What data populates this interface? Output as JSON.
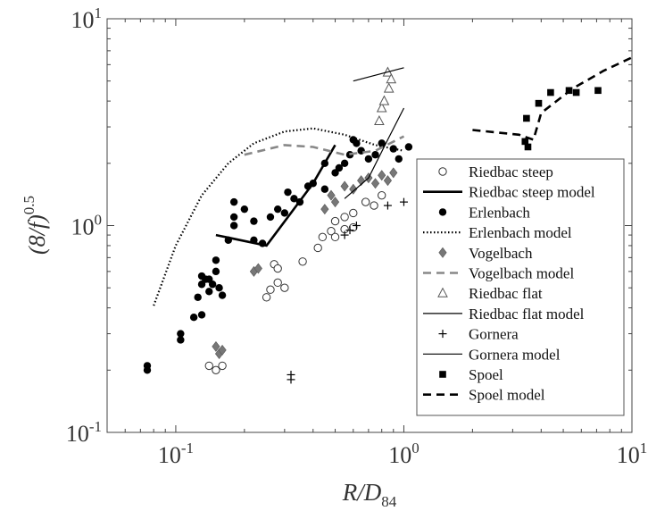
{
  "chart_data": {
    "type": "scatter",
    "title": "",
    "xlabel": "R/D84",
    "ylabel": "(8/f)^0.5",
    "xscale": "log",
    "yscale": "log",
    "xlim": [
      0.05,
      10
    ],
    "ylim": [
      0.1,
      10
    ],
    "x_ticks": [
      {
        "value": 0.1,
        "base": "10",
        "exp": "-1"
      },
      {
        "value": 1,
        "base": "10",
        "exp": "0"
      },
      {
        "value": 10,
        "base": "10",
        "exp": "1"
      }
    ],
    "y_ticks": [
      {
        "value": 0.1,
        "base": "10",
        "exp": "-1"
      },
      {
        "value": 1,
        "base": "10",
        "exp": "0"
      },
      {
        "value": 10,
        "base": "10",
        "exp": "1"
      }
    ],
    "legend_position": "right",
    "series": [
      {
        "name": "Riedbac steep",
        "kind": "points",
        "marker": "circle-open",
        "color": "#333333",
        "points": [
          [
            0.14,
            0.21
          ],
          [
            0.15,
            0.2
          ],
          [
            0.16,
            0.21
          ],
          [
            0.25,
            0.45
          ],
          [
            0.26,
            0.49
          ],
          [
            0.28,
            0.53
          ],
          [
            0.27,
            0.65
          ],
          [
            0.28,
            0.62
          ],
          [
            0.3,
            0.5
          ],
          [
            0.36,
            0.67
          ],
          [
            0.42,
            0.78
          ],
          [
            0.44,
            0.88
          ],
          [
            0.48,
            0.94
          ],
          [
            0.5,
            0.88
          ],
          [
            0.55,
            0.96
          ],
          [
            0.6,
            0.98
          ],
          [
            0.5,
            1.05
          ],
          [
            0.55,
            1.1
          ],
          [
            0.6,
            1.15
          ],
          [
            0.68,
            1.3
          ],
          [
            0.74,
            1.25
          ],
          [
            0.8,
            1.4
          ]
        ]
      },
      {
        "name": "Riedbac steep model",
        "kind": "line",
        "style": "thick",
        "color": "#000000",
        "points": [
          [
            0.15,
            0.9
          ],
          [
            0.25,
            0.8
          ],
          [
            0.32,
            1.15
          ],
          [
            0.4,
            1.6
          ],
          [
            0.5,
            2.45
          ]
        ]
      },
      {
        "name": "Erlenbach",
        "kind": "points",
        "marker": "circle-filled",
        "color": "#000000",
        "points": [
          [
            0.075,
            0.2
          ],
          [
            0.075,
            0.21
          ],
          [
            0.105,
            0.28
          ],
          [
            0.105,
            0.3
          ],
          [
            0.12,
            0.36
          ],
          [
            0.13,
            0.37
          ],
          [
            0.125,
            0.45
          ],
          [
            0.13,
            0.52
          ],
          [
            0.135,
            0.55
          ],
          [
            0.14,
            0.48
          ],
          [
            0.14,
            0.55
          ],
          [
            0.15,
            0.6
          ],
          [
            0.15,
            0.68
          ],
          [
            0.155,
            0.5
          ],
          [
            0.16,
            0.46
          ],
          [
            0.13,
            0.57
          ],
          [
            0.145,
            0.52
          ],
          [
            0.17,
            0.85
          ],
          [
            0.18,
            1.0
          ],
          [
            0.18,
            1.1
          ],
          [
            0.18,
            1.3
          ],
          [
            0.2,
            1.2
          ],
          [
            0.22,
            1.05
          ],
          [
            0.22,
            0.85
          ],
          [
            0.24,
            0.82
          ],
          [
            0.26,
            1.1
          ],
          [
            0.28,
            1.2
          ],
          [
            0.3,
            1.15
          ],
          [
            0.31,
            1.45
          ],
          [
            0.33,
            1.35
          ],
          [
            0.35,
            1.3
          ],
          [
            0.4,
            1.6
          ],
          [
            0.45,
            1.5
          ],
          [
            0.5,
            1.8
          ],
          [
            0.55,
            2.0
          ],
          [
            0.58,
            2.2
          ],
          [
            0.62,
            2.5
          ],
          [
            0.65,
            2.3
          ],
          [
            0.7,
            2.1
          ],
          [
            0.75,
            2.2
          ],
          [
            0.8,
            2.5
          ],
          [
            0.9,
            2.35
          ],
          [
            0.95,
            2.1
          ],
          [
            1.05,
            2.4
          ],
          [
            0.45,
            2.0
          ],
          [
            0.52,
            1.9
          ],
          [
            0.38,
            1.55
          ],
          [
            0.6,
            2.6
          ]
        ]
      },
      {
        "name": "Erlenbach model",
        "kind": "line",
        "style": "dotted",
        "color": "#000000",
        "points": [
          [
            0.08,
            0.41
          ],
          [
            0.1,
            0.8
          ],
          [
            0.13,
            1.4
          ],
          [
            0.17,
            2.0
          ],
          [
            0.22,
            2.5
          ],
          [
            0.3,
            2.85
          ],
          [
            0.4,
            2.95
          ],
          [
            0.55,
            2.75
          ],
          [
            0.75,
            2.45
          ],
          [
            1.0,
            2.3
          ]
        ]
      },
      {
        "name": "Vogelbach",
        "kind": "points",
        "marker": "diamond-filled",
        "color": "#777777",
        "points": [
          [
            0.15,
            0.26
          ],
          [
            0.155,
            0.24
          ],
          [
            0.16,
            0.25
          ],
          [
            0.22,
            0.6
          ],
          [
            0.23,
            0.62
          ],
          [
            0.45,
            1.2
          ],
          [
            0.48,
            1.4
          ],
          [
            0.5,
            1.3
          ],
          [
            0.55,
            1.55
          ],
          [
            0.6,
            1.5
          ],
          [
            0.65,
            1.65
          ],
          [
            0.7,
            1.7
          ],
          [
            0.75,
            1.6
          ],
          [
            0.8,
            1.75
          ],
          [
            0.85,
            1.65
          ],
          [
            0.9,
            1.8
          ]
        ]
      },
      {
        "name": "Vogelbach model",
        "kind": "line",
        "style": "dashed-gray",
        "color": "#888888",
        "points": [
          [
            0.2,
            2.2
          ],
          [
            0.3,
            2.45
          ],
          [
            0.4,
            2.4
          ],
          [
            0.55,
            2.2
          ],
          [
            0.75,
            2.3
          ],
          [
            1.0,
            2.7
          ]
        ]
      },
      {
        "name": "Riedbac flat",
        "kind": "points",
        "marker": "triangle-open",
        "color": "#555555",
        "points": [
          [
            0.78,
            3.2
          ],
          [
            0.8,
            3.7
          ],
          [
            0.82,
            4.0
          ],
          [
            0.85,
            5.5
          ],
          [
            0.88,
            5.1
          ],
          [
            0.86,
            4.6
          ]
        ]
      },
      {
        "name": "Riedbac flat model",
        "kind": "line",
        "style": "thin",
        "color": "#000000",
        "points": [
          [
            0.55,
            1.35
          ],
          [
            0.7,
            1.7
          ],
          [
            0.85,
            2.6
          ],
          [
            1.0,
            3.7
          ]
        ]
      },
      {
        "name": "Gornera",
        "kind": "points",
        "marker": "plus",
        "color": "#000000",
        "points": [
          [
            0.32,
            0.18
          ],
          [
            0.32,
            0.19
          ],
          [
            0.55,
            0.9
          ],
          [
            0.58,
            0.95
          ],
          [
            0.62,
            1.0
          ],
          [
            0.85,
            1.25
          ],
          [
            1.0,
            1.3
          ]
        ]
      },
      {
        "name": "Gornera model",
        "kind": "line",
        "style": "thin",
        "color": "#000000",
        "points": [
          [
            0.6,
            5.0
          ],
          [
            1.0,
            5.8
          ]
        ]
      },
      {
        "name": "Spoel",
        "kind": "points",
        "marker": "square-filled",
        "color": "#000000",
        "points": [
          [
            3.4,
            2.55
          ],
          [
            3.5,
            2.4
          ],
          [
            3.45,
            3.3
          ],
          [
            3.9,
            3.9
          ],
          [
            4.4,
            4.4
          ],
          [
            5.3,
            4.5
          ],
          [
            5.7,
            4.4
          ],
          [
            7.1,
            4.5
          ]
        ]
      },
      {
        "name": "Spoel model",
        "kind": "line",
        "style": "dashed-black",
        "color": "#000000",
        "points": [
          [
            2.0,
            2.9
          ],
          [
            3.2,
            2.75
          ],
          [
            3.7,
            2.6
          ],
          [
            4.0,
            3.5
          ],
          [
            5.5,
            4.6
          ],
          [
            7.5,
            5.6
          ],
          [
            10.0,
            6.5
          ]
        ]
      }
    ]
  }
}
